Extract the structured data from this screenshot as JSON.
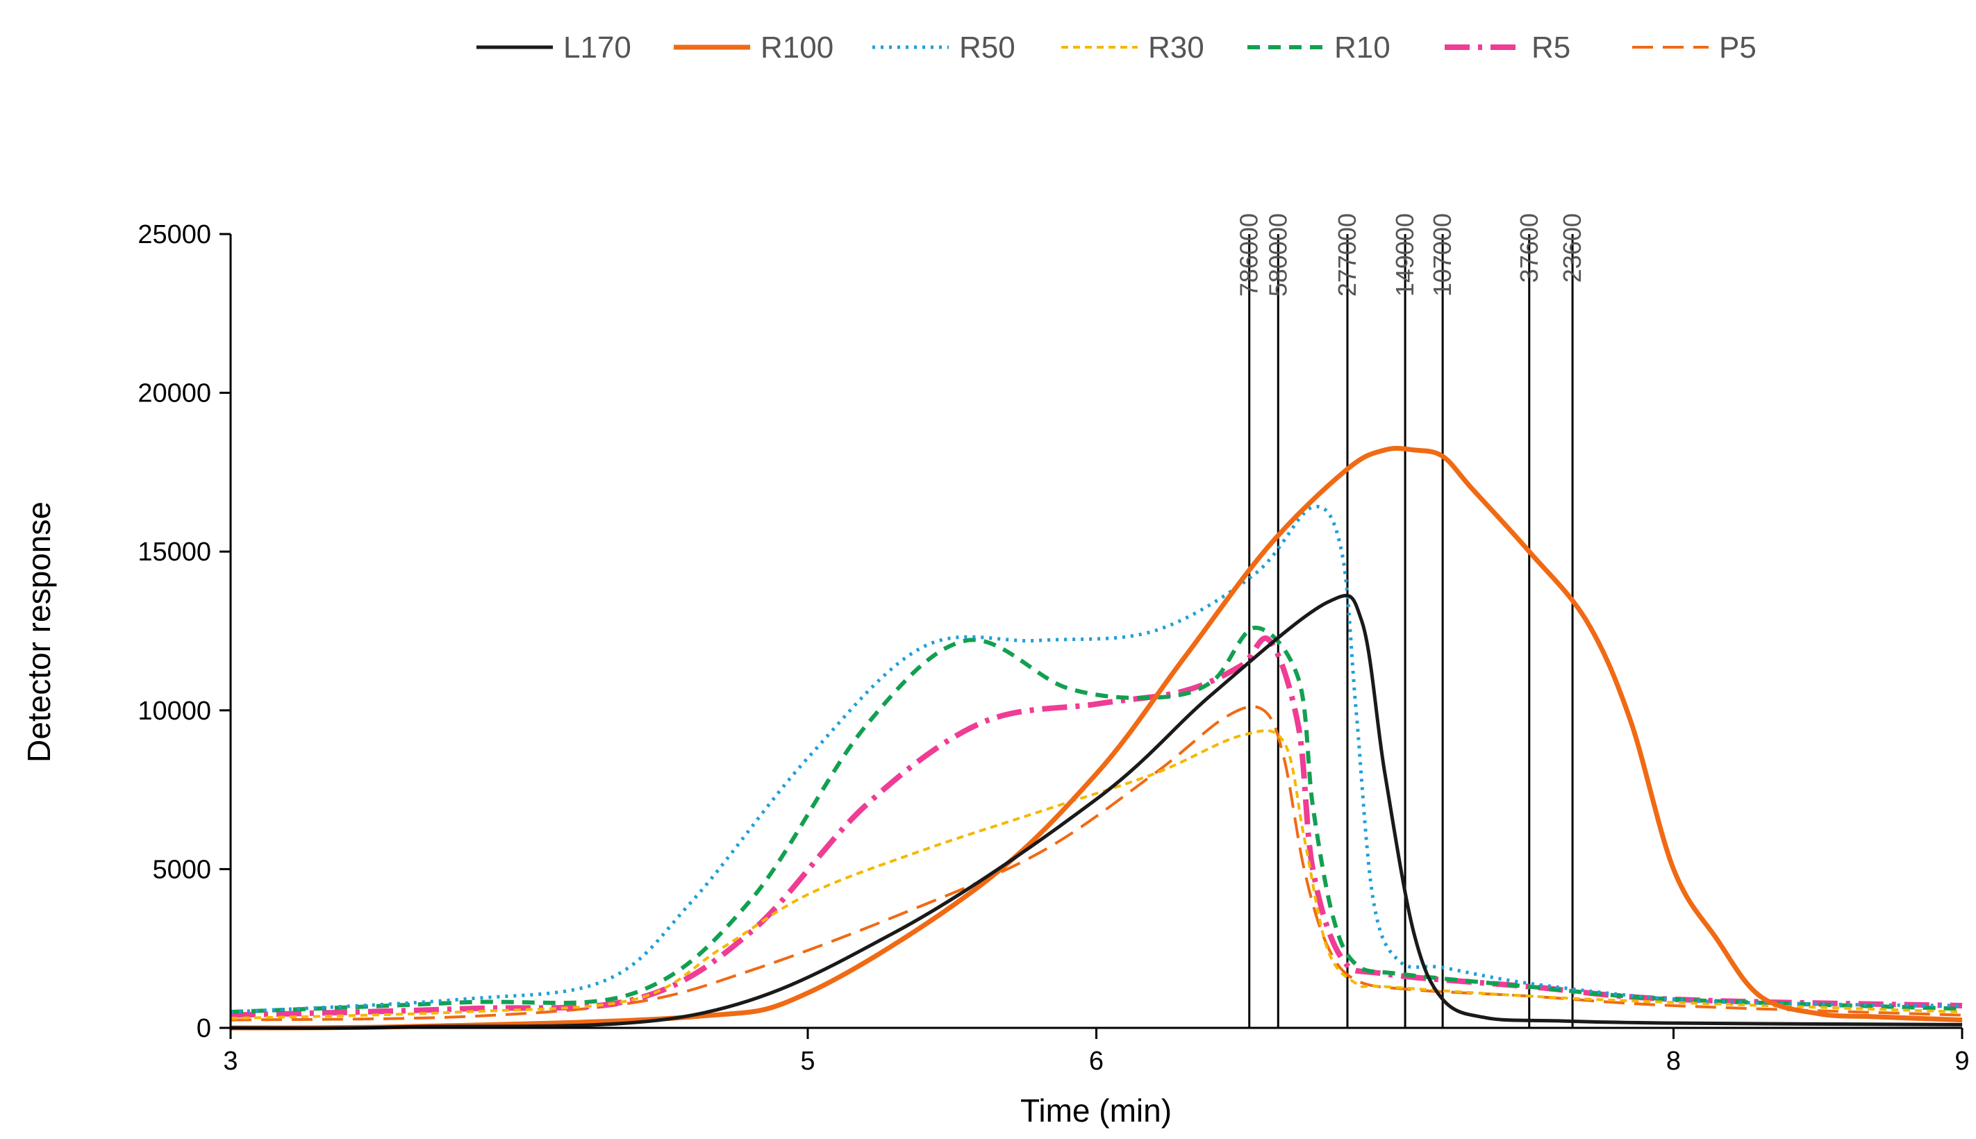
{
  "chart_data": {
    "type": "line",
    "title": "",
    "xlabel": "Time (min)",
    "ylabel": "Detector response",
    "xlim": [
      3,
      9
    ],
    "ylim": [
      0,
      25000
    ],
    "x_ticks": [
      3,
      5,
      6,
      8,
      9
    ],
    "x_tick_positions": [
      3,
      5,
      6,
      8,
      9
    ],
    "y_ticks": [
      0,
      5000,
      10000,
      15000,
      20000,
      25000
    ],
    "legend_position": "top",
    "molecular_weight_markers": [
      {
        "label": "786000",
        "x": 6.53
      },
      {
        "label": "580000",
        "x": 6.63
      },
      {
        "label": "277000",
        "x": 6.87
      },
      {
        "label": "149000",
        "x": 7.07
      },
      {
        "label": "107000",
        "x": 7.2
      },
      {
        "label": "37600",
        "x": 7.5
      },
      {
        "label": "23600",
        "x": 7.65
      }
    ],
    "series": [
      {
        "name": "L170",
        "color": "#1a1a1a",
        "dash": "solid",
        "width": 5,
        "x": [
          3,
          3.6,
          4.6,
          5.3,
          6,
          6.4,
          6.8,
          6.92,
          7.0,
          7.1,
          7.2,
          7.35,
          7.6,
          8,
          9
        ],
        "y": [
          0,
          30,
          400,
          3000,
          7200,
          10500,
          13400,
          12800,
          8000,
          3000,
          900,
          320,
          220,
          150,
          100
        ]
      },
      {
        "name": "R100",
        "color": "#f06a14",
        "dash": "solid",
        "width": 7,
        "x": [
          3,
          3.6,
          4.6,
          5,
          5.6,
          6.0,
          6.3,
          6.6,
          6.87,
          7.0,
          7.1,
          7.2,
          7.3,
          7.5,
          7.7,
          7.85,
          8.0,
          8.15,
          8.3,
          8.5,
          8.7,
          9
        ],
        "y": [
          0,
          40,
          350,
          1100,
          4500,
          8000,
          11600,
          15200,
          17600,
          18200,
          18200,
          18000,
          17000,
          15000,
          12800,
          9700,
          5000,
          2800,
          1000,
          450,
          350,
          250
        ]
      },
      {
        "name": "R50",
        "color": "#1f9fd8",
        "dash": "4 8",
        "width": 5,
        "x": [
          3,
          3.8,
          4.3,
          4.6,
          5,
          5.4,
          5.8,
          6.2,
          6.55,
          6.75,
          6.85,
          6.9,
          6.96,
          7.05,
          7.2,
          7.5,
          8.0,
          8.5,
          9
        ],
        "y": [
          500,
          900,
          1500,
          4000,
          8500,
          12000,
          12200,
          12500,
          14300,
          16400,
          15000,
          10000,
          4000,
          2100,
          1900,
          1400,
          900,
          750,
          700
        ]
      },
      {
        "name": "R30",
        "color": "#f4b800",
        "dash": "10 7",
        "width": 4,
        "x": [
          3,
          3.8,
          4.4,
          4.7,
          5.0,
          5.4,
          5.8,
          6.2,
          6.5,
          6.65,
          6.72,
          6.8,
          6.9,
          7.0,
          7.5,
          8.0,
          9
        ],
        "y": [
          300,
          500,
          900,
          2500,
          4200,
          5600,
          6800,
          8000,
          9200,
          9000,
          6000,
          2500,
          1400,
          1300,
          1000,
          800,
          500
        ]
      },
      {
        "name": "R10",
        "color": "#12a050",
        "dash": "18 12",
        "width": 6,
        "x": [
          3,
          3.8,
          4.4,
          4.8,
          5.2,
          5.55,
          5.9,
          6.2,
          6.4,
          6.55,
          6.7,
          6.75,
          6.82,
          6.9,
          7.05,
          7.5,
          8.0,
          9
        ],
        "y": [
          500,
          800,
          1100,
          4000,
          9500,
          12200,
          10700,
          10400,
          10900,
          12600,
          11000,
          7000,
          3500,
          2000,
          1700,
          1300,
          900,
          600
        ]
      },
      {
        "name": "R5",
        "color": "#ef3c94",
        "dash": "36 12 6 12",
        "width": 8,
        "x": [
          3,
          3.8,
          4.4,
          4.8,
          5.2,
          5.6,
          6.0,
          6.3,
          6.5,
          6.6,
          6.7,
          6.75,
          6.85,
          7.0,
          7.5,
          8.0,
          9
        ],
        "y": [
          400,
          600,
          900,
          3000,
          7000,
          9600,
          10200,
          10600,
          11400,
          12200,
          9500,
          5000,
          2200,
          1700,
          1300,
          900,
          700
        ]
      },
      {
        "name": "P5",
        "color": "#f06a14",
        "dash": "30 14",
        "width": 4,
        "x": [
          3,
          3.8,
          4.4,
          4.8,
          5.3,
          5.8,
          6.2,
          6.45,
          6.58,
          6.65,
          6.72,
          6.8,
          6.9,
          7.1,
          7.5,
          8.0,
          9
        ],
        "y": [
          250,
          350,
          800,
          1800,
          3500,
          5500,
          8000,
          9800,
          10000,
          8500,
          5000,
          2600,
          1500,
          1200,
          1000,
          700,
          400
        ]
      }
    ]
  }
}
